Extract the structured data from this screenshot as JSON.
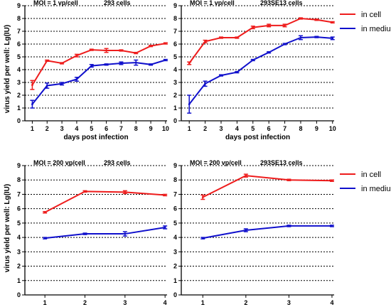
{
  "figure": {
    "ylabel_shared": "virus yield per well: Lg(IU)"
  },
  "colors": {
    "in_cell": "#ee1c1c",
    "in_medium": "#1010cc",
    "grid": "#000000"
  },
  "chart_data": [
    {
      "type": "line",
      "title_left": "MOI = 1 vp/cell",
      "title_right": "293 cells",
      "xlabel": "days post infection",
      "xlim": [
        0.5,
        10.1
      ],
      "ylim": [
        0,
        9
      ],
      "x_ticks": [
        1,
        2,
        3,
        4,
        5,
        6,
        7,
        8,
        9,
        10
      ],
      "y_ticks": [
        0,
        1,
        2,
        3,
        4,
        5,
        6,
        7,
        8,
        9
      ],
      "grid": "dotted horizontal",
      "legend": null,
      "series": [
        {
          "key": "in_cell",
          "x": [
            1,
            2,
            3,
            4,
            5,
            6,
            7,
            8,
            9,
            10
          ],
          "y": [
            2.8,
            4.7,
            4.5,
            5.1,
            5.55,
            5.5,
            5.5,
            5.3,
            5.85,
            6.05
          ],
          "err": [
            0.35,
            0.05,
            0.05,
            0.1,
            0.05,
            0.15,
            0.05,
            0.05,
            0.05,
            0.05
          ]
        },
        {
          "key": "in_medium",
          "x": [
            1,
            2,
            3,
            4,
            5,
            6,
            7,
            8,
            9,
            10
          ],
          "y": [
            1.3,
            2.75,
            2.9,
            3.25,
            4.3,
            4.4,
            4.5,
            4.55,
            4.4,
            4.75
          ],
          "err": [
            0.3,
            0.2,
            0.1,
            0.15,
            0.1,
            0.05,
            0.1,
            0.2,
            0.05,
            0.05
          ]
        }
      ]
    },
    {
      "type": "line",
      "title_left": "MOI = 1 vp/cell",
      "title_right": "293SE13 cells",
      "xlabel": "days post infection",
      "xlim": [
        0.5,
        10.1
      ],
      "ylim": [
        0,
        9
      ],
      "x_ticks": [
        1,
        2,
        3,
        4,
        5,
        6,
        7,
        8,
        9,
        10
      ],
      "y_ticks": [
        0,
        1,
        2,
        3,
        4,
        5,
        6,
        7,
        8,
        9
      ],
      "grid": "dotted horizontal",
      "legend": "top-right",
      "legend_entries": [
        "in cell",
        "in medium"
      ],
      "series": [
        {
          "key": "in_cell",
          "x": [
            1,
            2,
            3,
            4,
            5,
            6,
            7,
            8,
            9,
            10
          ],
          "y": [
            4.5,
            6.2,
            6.5,
            6.5,
            7.3,
            7.45,
            7.45,
            8.0,
            7.9,
            7.7
          ],
          "err": [
            0.1,
            0.1,
            0.05,
            0.05,
            0.1,
            0.1,
            0.1,
            0.05,
            0.05,
            0.05
          ]
        },
        {
          "key": "in_medium",
          "x": [
            1,
            2,
            3,
            4,
            5,
            6,
            7,
            8,
            9,
            10
          ],
          "y": [
            1.3,
            2.9,
            3.55,
            3.8,
            4.75,
            5.35,
            6.0,
            6.5,
            6.55,
            6.45
          ],
          "err": [
            0.7,
            0.2,
            0.05,
            0.05,
            0.05,
            0.05,
            0.05,
            0.15,
            0.05,
            0.1
          ]
        }
      ]
    },
    {
      "type": "line",
      "title_left": "MOI = 200 vp/cell",
      "title_right": "293 cells",
      "xlabel": "days post infection",
      "xlim": [
        0.5,
        4.05
      ],
      "ylim": [
        0,
        9
      ],
      "x_ticks": [
        1,
        2,
        3,
        4
      ],
      "y_ticks": [
        0,
        1,
        2,
        3,
        4,
        5,
        6,
        7,
        8,
        9
      ],
      "grid": "dotted horizontal",
      "legend": null,
      "series": [
        {
          "key": "in_cell",
          "x": [
            1,
            2,
            3,
            4
          ],
          "y": [
            5.75,
            7.2,
            7.15,
            6.95
          ],
          "err": [
            0.05,
            0.05,
            0.1,
            0.05
          ]
        },
        {
          "key": "in_medium",
          "x": [
            1,
            2,
            3,
            4
          ],
          "y": [
            3.95,
            4.25,
            4.25,
            4.7
          ],
          "err": [
            0.05,
            0.05,
            0.15,
            0.1
          ]
        }
      ]
    },
    {
      "type": "line",
      "title_left": "MOI = 200 vp/cell",
      "title_right": "293SE13 cells",
      "xlabel": "days post infection",
      "xlim": [
        0.5,
        4.05
      ],
      "ylim": [
        0,
        9
      ],
      "x_ticks": [
        1,
        2,
        3,
        4
      ],
      "y_ticks": [
        0,
        1,
        2,
        3,
        4,
        5,
        6,
        7,
        8,
        9
      ],
      "grid": "dotted horizontal",
      "legend": "top-right",
      "legend_entries": [
        "in cell",
        "in medium"
      ],
      "series": [
        {
          "key": "in_cell",
          "x": [
            1,
            2,
            3,
            4
          ],
          "y": [
            6.8,
            8.3,
            8.0,
            7.95
          ],
          "err": [
            0.15,
            0.1,
            0.05,
            0.05
          ]
        },
        {
          "key": "in_medium",
          "x": [
            1,
            2,
            3,
            4
          ],
          "y": [
            3.95,
            4.5,
            4.8,
            4.8
          ],
          "err": [
            0.05,
            0.1,
            0.05,
            0.05
          ]
        }
      ]
    }
  ]
}
